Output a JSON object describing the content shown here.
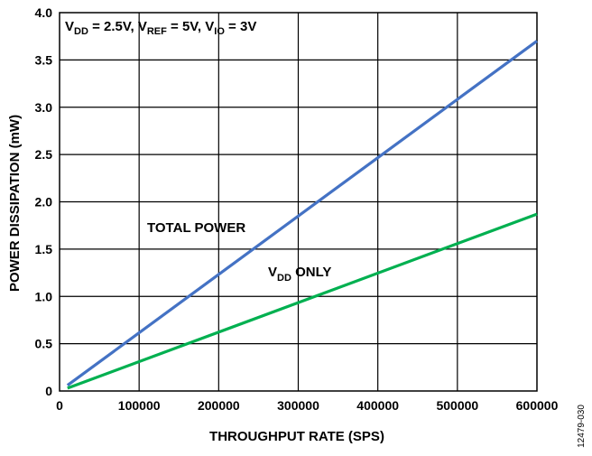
{
  "chart_data": {
    "type": "line",
    "title": "",
    "xlabel": "THROUGHPUT RATE (SPS)",
    "ylabel": "POWER DISSIPATION (mW)",
    "xlim": [
      0,
      600000
    ],
    "ylim": [
      0,
      4.0
    ],
    "x_ticks": [
      0,
      100000,
      200000,
      300000,
      400000,
      500000,
      600000
    ],
    "x_tick_labels": [
      "0",
      "100000",
      "200000",
      "300000",
      "400000",
      "500000",
      "600000"
    ],
    "y_ticks": [
      0,
      0.5,
      1.0,
      1.5,
      2.0,
      2.5,
      3.0,
      3.5,
      4.0
    ],
    "y_tick_labels": [
      "0",
      "0.5",
      "1.0",
      "1.5",
      "2.0",
      "2.5",
      "3.0",
      "3.5",
      "4.0"
    ],
    "grid": true,
    "conditions": {
      "vdd_main": "V",
      "vdd_sub": "DD",
      "vdd_val": " = 2.5V, ",
      "vref_main": "V",
      "vref_sub": "REF",
      "vref_val": " = 5V, ",
      "vio_main": "V",
      "vio_sub": "IO",
      "vio_val": " = 3V"
    },
    "series": [
      {
        "label_main": "TOTAL POWER",
        "label_sub": "",
        "label_rest": "",
        "color": "#4472C4",
        "x": [
          10000,
          600000
        ],
        "y": [
          0.06,
          3.7
        ]
      },
      {
        "label_main": "V",
        "label_sub": "DD",
        "label_rest": " ONLY",
        "color": "#00B050",
        "x": [
          10000,
          600000
        ],
        "y": [
          0.03,
          1.87
        ]
      }
    ],
    "figure_id": "12479-030"
  }
}
